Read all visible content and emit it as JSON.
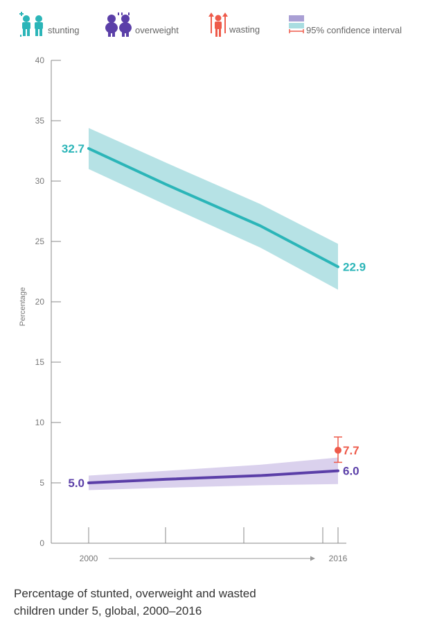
{
  "chart_data": {
    "type": "line",
    "title": "Percentage of stunted, overweight and wasted children under 5, global, 2000–2016",
    "title_lines": [
      "Percentage of stunted, overweight and wasted",
      "children under 5, global, 2000–2016"
    ],
    "xlabel": "",
    "ylabel": "Percentage",
    "x_ticks": [
      "2000",
      "2016"
    ],
    "x_range": [
      2000,
      2016
    ],
    "ylim": [
      0,
      40
    ],
    "y_ticks": [
      "0",
      "5",
      "10",
      "15",
      "20",
      "25",
      "30",
      "35",
      "40"
    ],
    "grid": false,
    "legend_position": "top",
    "series": [
      {
        "name": "stunting",
        "color": "#2bb5b8",
        "band_color": "#a9dde1",
        "icon": "children-icon",
        "points": [
          {
            "x": 2000,
            "y": 32.7,
            "lower": 31.0,
            "upper": 34.4
          },
          {
            "x": 2005,
            "y": 29.7,
            "lower": 28.0,
            "upper": 31.5
          },
          {
            "x": 2011,
            "y": 26.3,
            "lower": 24.5,
            "upper": 28.1
          },
          {
            "x": 2016,
            "y": 22.9,
            "lower": 21.0,
            "upper": 24.8
          }
        ],
        "labels": [
          {
            "x": 2000,
            "text": "32.7",
            "side": "left"
          },
          {
            "x": 2016,
            "text": "22.9",
            "side": "right"
          }
        ]
      },
      {
        "name": "overweight",
        "color": "#5b3fa8",
        "band_color": "#d3c9ea",
        "icon": "children-icon",
        "points": [
          {
            "x": 2000,
            "y": 5.0,
            "lower": 4.4,
            "upper": 5.6
          },
          {
            "x": 2005,
            "y": 5.3,
            "lower": 4.6,
            "upper": 6.0
          },
          {
            "x": 2011,
            "y": 5.6,
            "lower": 4.8,
            "upper": 6.5
          },
          {
            "x": 2016,
            "y": 6.0,
            "lower": 4.9,
            "upper": 7.1
          }
        ],
        "labels": [
          {
            "x": 2000,
            "text": "5.0",
            "side": "left"
          },
          {
            "x": 2016,
            "text": "6.0",
            "side": "right"
          }
        ]
      },
      {
        "name": "wasting",
        "color": "#ee5a4a",
        "icon": "child-icon",
        "points": [
          {
            "x": 2016,
            "y": 7.7,
            "lower": 6.7,
            "upper": 8.8
          }
        ],
        "labels": [
          {
            "x": 2016,
            "text": "7.7",
            "side": "right"
          }
        ]
      }
    ],
    "confidence_interval_label": "95% confidence interval"
  }
}
